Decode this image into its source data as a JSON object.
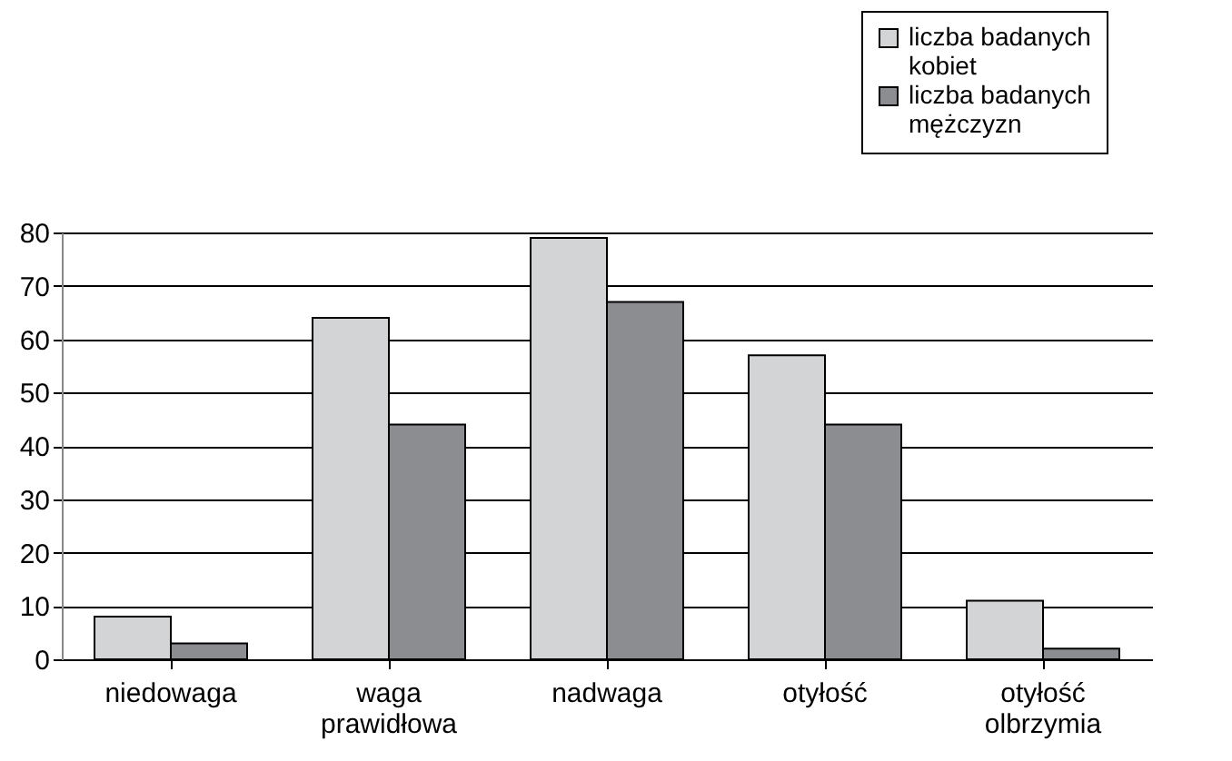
{
  "chart_data": {
    "type": "bar",
    "categories": [
      "niedowaga",
      "waga prawidłowa",
      "nadwaga",
      "otyłość",
      "otyłość olbrzymia"
    ],
    "series": [
      {
        "name": "liczba badanych kobiet",
        "color": "#d3d4d6",
        "values": [
          8,
          64,
          79,
          57,
          11
        ]
      },
      {
        "name": "liczba badanych mężczyzn",
        "color": "#8c8d90",
        "values": [
          3,
          44,
          67,
          44,
          2
        ]
      }
    ],
    "ylim": [
      0,
      80
    ],
    "yticks": [
      0,
      10,
      20,
      30,
      40,
      50,
      60,
      70,
      80
    ],
    "grid": "y",
    "legend": "top right"
  }
}
